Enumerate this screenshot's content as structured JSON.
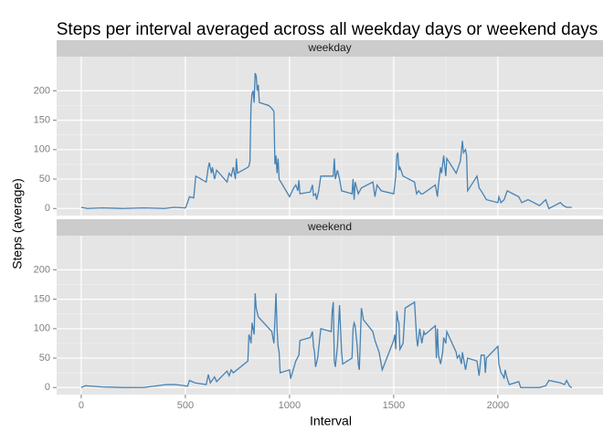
{
  "chart_data": {
    "type": "line",
    "title": "Steps per interval averaged across all weekday days or weekend days",
    "x_label": "Interval",
    "y_label": "Steps (average)",
    "color": "#4682b4",
    "grid": true,
    "xlim": [
      -118,
      2505
    ],
    "ylim": [
      -12,
      258
    ],
    "xticks": [
      0,
      500,
      1000,
      1500,
      2000
    ],
    "yticks": [
      0,
      50,
      100,
      150,
      200
    ],
    "panels": [
      {
        "name": "weekday",
        "x": [
          0,
          30,
          100,
          200,
          300,
          400,
          445,
          500,
          505,
          520,
          540,
          550,
          600,
          610,
          615,
          625,
          630,
          640,
          650,
          700,
          710,
          720,
          730,
          740,
          745,
          750,
          800,
          805,
          810,
          815,
          820,
          825,
          830,
          835,
          840,
          845,
          850,
          855,
          900,
          915,
          925,
          930,
          935,
          940,
          945,
          950,
          1000,
          1020,
          1030,
          1040,
          1045,
          1050,
          1100,
          1110,
          1115,
          1125,
          1130,
          1140,
          1150,
          1200,
          1210,
          1215,
          1220,
          1230,
          1240,
          1250,
          1300,
          1305,
          1310,
          1315,
          1330,
          1345,
          1400,
          1410,
          1420,
          1440,
          1500,
          1510,
          1515,
          1520,
          1525,
          1530,
          1545,
          1600,
          1610,
          1620,
          1630,
          1640,
          1700,
          1710,
          1715,
          1725,
          1730,
          1740,
          1750,
          1755,
          1800,
          1810,
          1815,
          1820,
          1830,
          1835,
          1845,
          1850,
          1855,
          1900,
          1910,
          1920,
          1945,
          2000,
          2005,
          2015,
          2030,
          2045,
          2100,
          2115,
          2145,
          2200,
          2230,
          2245,
          2300,
          2315,
          2330,
          2355
        ],
        "values": [
          2,
          0,
          1,
          0,
          1,
          0,
          2,
          1,
          5,
          20,
          18,
          55,
          45,
          70,
          78,
          60,
          70,
          50,
          65,
          45,
          60,
          55,
          70,
          50,
          85,
          60,
          70,
          72,
          80,
          175,
          195,
          200,
          180,
          230,
          225,
          200,
          210,
          180,
          175,
          170,
          165,
          75,
          90,
          60,
          85,
          50,
          20,
          35,
          40,
          30,
          48,
          25,
          28,
          40,
          22,
          25,
          15,
          30,
          55,
          55,
          55,
          85,
          50,
          65,
          50,
          30,
          25,
          50,
          15,
          45,
          25,
          35,
          45,
          20,
          40,
          30,
          25,
          55,
          90,
          95,
          65,
          70,
          55,
          45,
          25,
          30,
          25,
          25,
          40,
          20,
          40,
          70,
          60,
          90,
          55,
          85,
          60,
          70,
          75,
          80,
          115,
          95,
          100,
          90,
          30,
          55,
          35,
          30,
          15,
          10,
          20,
          10,
          15,
          30,
          20,
          10,
          15,
          5,
          15,
          0,
          10,
          5,
          2,
          2
        ]
      },
      {
        "name": "weekend",
        "x": [
          0,
          20,
          100,
          200,
          300,
          410,
          450,
          500,
          510,
          520,
          545,
          600,
          610,
          620,
          640,
          650,
          700,
          710,
          720,
          730,
          800,
          805,
          810,
          815,
          820,
          830,
          835,
          840,
          850,
          915,
          925,
          935,
          940,
          945,
          950,
          955,
          1000,
          1005,
          1030,
          1045,
          1050,
          1100,
          1110,
          1115,
          1120,
          1125,
          1135,
          1150,
          1200,
          1205,
          1210,
          1215,
          1220,
          1230,
          1240,
          1245,
          1250,
          1255,
          1300,
          1305,
          1310,
          1315,
          1325,
          1330,
          1335,
          1345,
          1355,
          1400,
          1410,
          1430,
          1445,
          1500,
          1505,
          1510,
          1515,
          1520,
          1525,
          1530,
          1545,
          1555,
          1600,
          1610,
          1615,
          1625,
          1635,
          1645,
          1650,
          1700,
          1705,
          1710,
          1715,
          1725,
          1735,
          1740,
          1750,
          1755,
          1800,
          1805,
          1815,
          1825,
          1830,
          1845,
          1855,
          1900,
          1910,
          1920,
          1935,
          1940,
          1945,
          2000,
          2005,
          2015,
          2025,
          2030,
          2035,
          2045,
          2055,
          2100,
          2110,
          2200,
          2230,
          2245,
          2300,
          2320,
          2330,
          2345,
          2355
        ],
        "values": [
          0,
          3,
          1,
          0,
          0,
          5,
          5,
          3,
          2,
          12,
          8,
          5,
          22,
          8,
          18,
          10,
          28,
          20,
          30,
          25,
          45,
          90,
          85,
          75,
          110,
          90,
          160,
          135,
          120,
          95,
          75,
          160,
          100,
          70,
          60,
          25,
          30,
          15,
          45,
          55,
          80,
          85,
          95,
          70,
          60,
          35,
          50,
          100,
          95,
          130,
          145,
          45,
          35,
          70,
          140,
          100,
          60,
          40,
          50,
          100,
          110,
          105,
          70,
          40,
          30,
          135,
          115,
          95,
          80,
          60,
          30,
          80,
          90,
          65,
          130,
          115,
          110,
          65,
          75,
          135,
          145,
          85,
          70,
          100,
          75,
          95,
          90,
          105,
          50,
          100,
          55,
          40,
          60,
          85,
          75,
          95,
          60,
          50,
          55,
          40,
          60,
          30,
          50,
          45,
          20,
          55,
          55,
          25,
          50,
          70,
          40,
          25,
          20,
          15,
          30,
          15,
          5,
          10,
          0,
          0,
          3,
          12,
          8,
          5,
          12,
          2,
          0
        ]
      }
    ]
  }
}
